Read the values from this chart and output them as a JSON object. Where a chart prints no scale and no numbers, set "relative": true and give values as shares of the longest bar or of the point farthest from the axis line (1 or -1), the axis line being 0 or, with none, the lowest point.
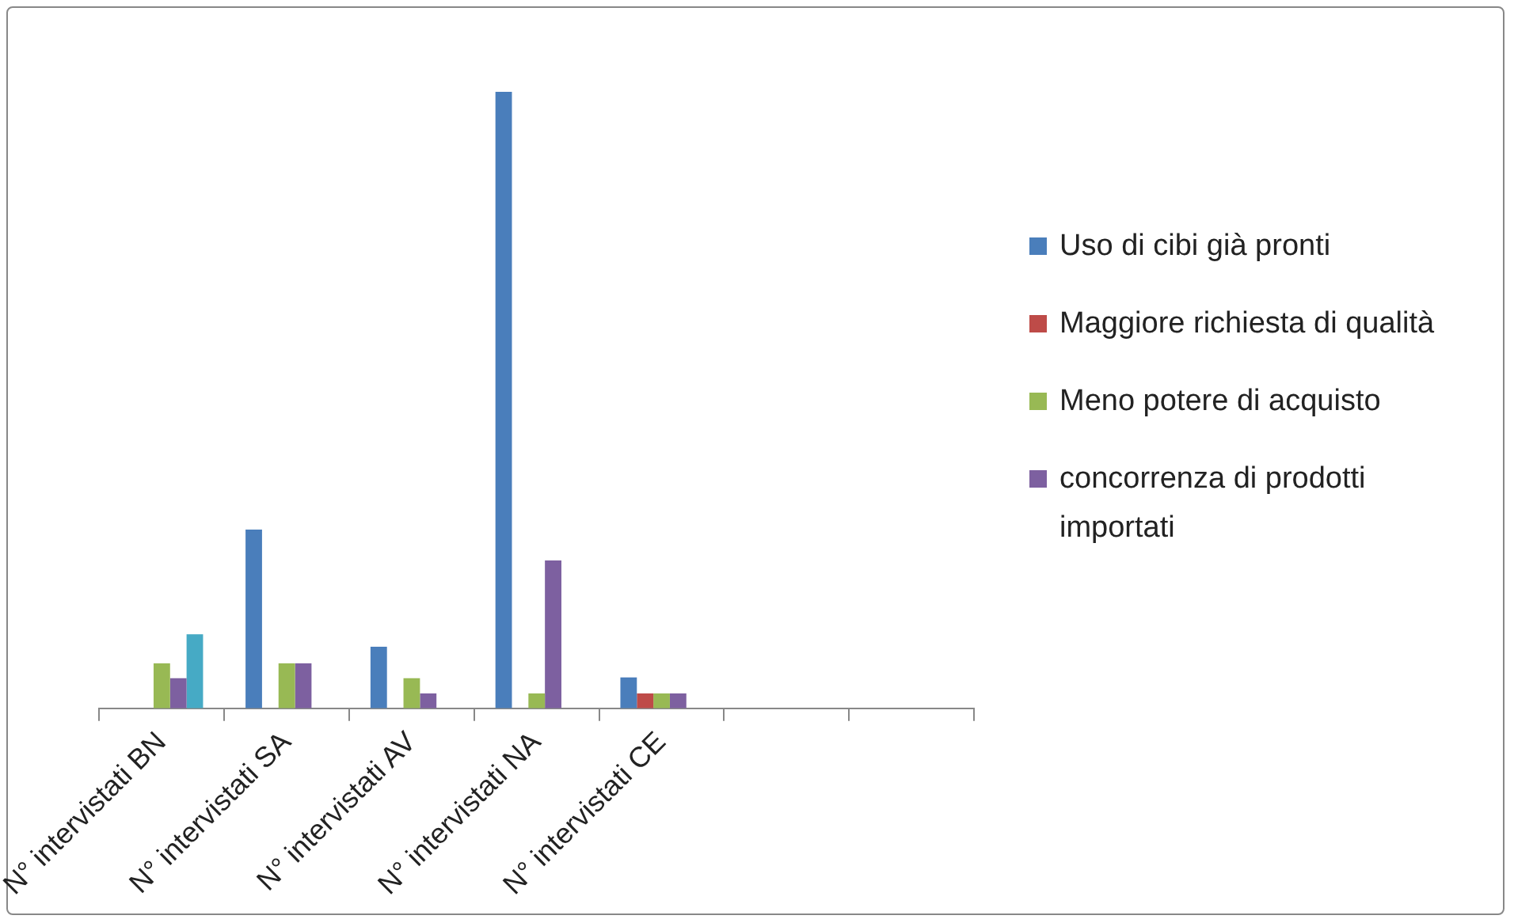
{
  "chart_data": {
    "type": "bar",
    "relative": true,
    "categories": [
      "N° intervistati BN",
      "N° intervistati SA",
      "N° intervistati AV",
      "N° intervistati NA",
      "N° intervistati CE",
      null,
      null
    ],
    "series": [
      {
        "name": "Uso di cibi già pronti",
        "color": "#4a7ebb",
        "values": [
          0,
          0.29,
          0.1,
          1,
          0.05,
          null,
          null
        ]
      },
      {
        "name": "Maggiore richiesta di qualità",
        "color": "#be4b48",
        "values": [
          0,
          0,
          0,
          0,
          0.024,
          null,
          null
        ]
      },
      {
        "name": "Meno potere di acquisto",
        "color": "#98b954",
        "values": [
          0.073,
          0.073,
          0.049,
          0.024,
          0.024,
          null,
          null
        ]
      },
      {
        "name": "concorrenza di prodotti importati",
        "color": "#7d60a0",
        "values": [
          0.049,
          0.073,
          0.024,
          0.24,
          0.024,
          null,
          null
        ]
      },
      {
        "color": "#46aac5",
        "values": [
          0.12,
          0,
          0,
          0,
          0,
          null,
          null
        ]
      }
    ],
    "grid": false,
    "legend": "right"
  }
}
